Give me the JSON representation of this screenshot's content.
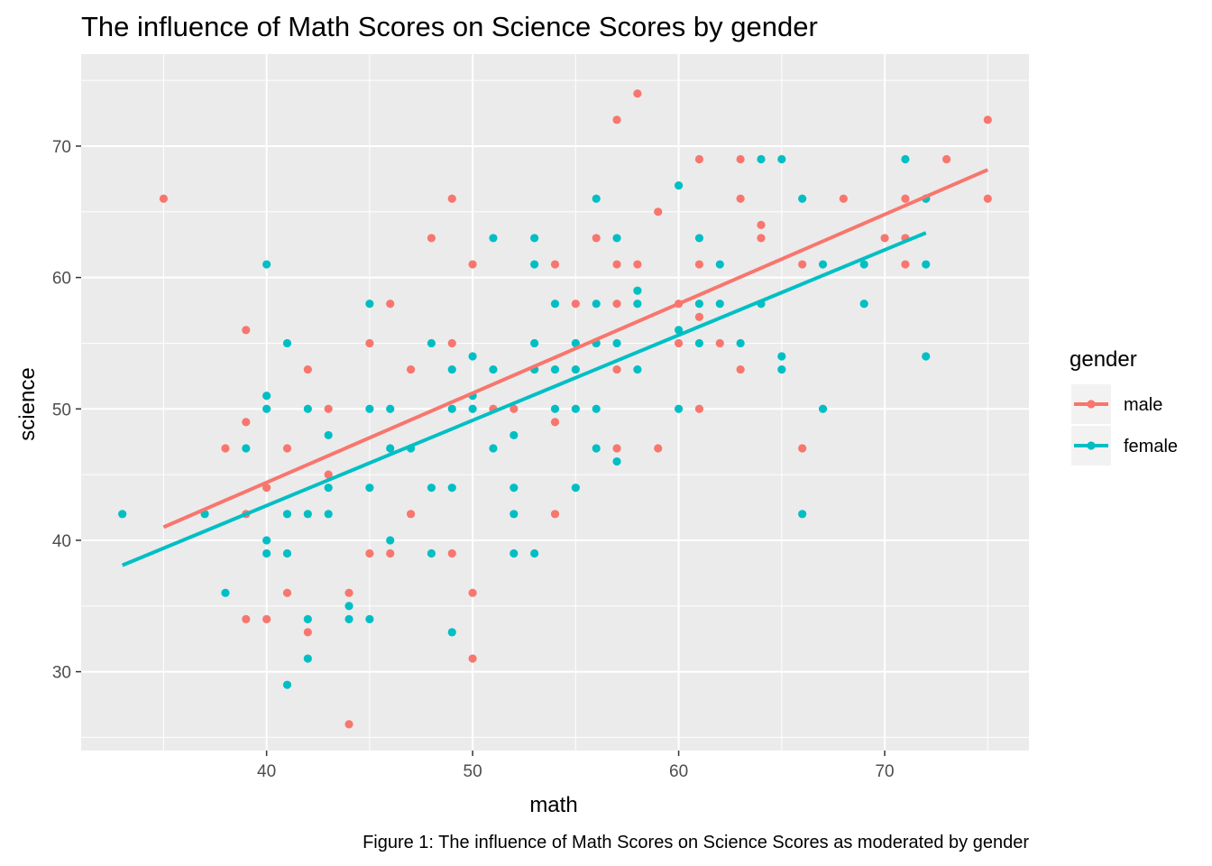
{
  "chart_data": {
    "type": "scatter",
    "title": "The influence of Math Scores on Science Scores by gender",
    "xlabel": "math",
    "ylabel": "science",
    "caption": "Figure 1: The influence of Math Scores on Science Scores as moderated by gender",
    "xlim": [
      31,
      77
    ],
    "ylim": [
      24,
      77
    ],
    "x_ticks": [
      40,
      50,
      60,
      70
    ],
    "y_ticks": [
      30,
      40,
      50,
      60,
      70
    ],
    "x_tick_labels": [
      "40",
      "50",
      "60",
      "70"
    ],
    "y_tick_labels": [
      "30",
      "40",
      "50",
      "60",
      "70"
    ],
    "grid": true,
    "legend": {
      "title": "gender",
      "position": "right"
    },
    "series": [
      {
        "name": "male",
        "color": "#F8766D",
        "points": [
          [
            35,
            66
          ],
          [
            38,
            47
          ],
          [
            39,
            56
          ],
          [
            39,
            49
          ],
          [
            39,
            42
          ],
          [
            39,
            34
          ],
          [
            40,
            44
          ],
          [
            40,
            34
          ],
          [
            41,
            47
          ],
          [
            41,
            36
          ],
          [
            42,
            53
          ],
          [
            42,
            33
          ],
          [
            43,
            50
          ],
          [
            43,
            45
          ],
          [
            44,
            36
          ],
          [
            44,
            26
          ],
          [
            45,
            55
          ],
          [
            45,
            39
          ],
          [
            46,
            58
          ],
          [
            46,
            39
          ],
          [
            47,
            53
          ],
          [
            47,
            42
          ],
          [
            48,
            63
          ],
          [
            49,
            66
          ],
          [
            49,
            55
          ],
          [
            49,
            39
          ],
          [
            50,
            61
          ],
          [
            50,
            36
          ],
          [
            50,
            31
          ],
          [
            51,
            50
          ],
          [
            52,
            50
          ],
          [
            54,
            61
          ],
          [
            54,
            49
          ],
          [
            54,
            42
          ],
          [
            55,
            58
          ],
          [
            56,
            63
          ],
          [
            56,
            55
          ],
          [
            57,
            72
          ],
          [
            57,
            61
          ],
          [
            57,
            58
          ],
          [
            57,
            53
          ],
          [
            57,
            47
          ],
          [
            58,
            74
          ],
          [
            58,
            61
          ],
          [
            59,
            65
          ],
          [
            59,
            47
          ],
          [
            60,
            58
          ],
          [
            60,
            55
          ],
          [
            61,
            69
          ],
          [
            61,
            61
          ],
          [
            61,
            57
          ],
          [
            61,
            50
          ],
          [
            62,
            55
          ],
          [
            63,
            69
          ],
          [
            63,
            66
          ],
          [
            63,
            53
          ],
          [
            64,
            64
          ],
          [
            64,
            63
          ],
          [
            66,
            61
          ],
          [
            66,
            47
          ],
          [
            68,
            66
          ],
          [
            70,
            63
          ],
          [
            71,
            66
          ],
          [
            71,
            63
          ],
          [
            71,
            61
          ],
          [
            72,
            66
          ],
          [
            73,
            69
          ],
          [
            75,
            72
          ],
          [
            75,
            66
          ]
        ],
        "fit": {
          "x": [
            35,
            75
          ],
          "y": [
            41.0,
            68.2
          ]
        }
      },
      {
        "name": "female",
        "color": "#00BFC4",
        "points": [
          [
            33,
            42
          ],
          [
            37,
            42
          ],
          [
            38,
            36
          ],
          [
            39,
            47
          ],
          [
            40,
            61
          ],
          [
            40,
            51
          ],
          [
            40,
            50
          ],
          [
            40,
            40
          ],
          [
            40,
            39
          ],
          [
            41,
            55
          ],
          [
            41,
            42
          ],
          [
            41,
            39
          ],
          [
            41,
            29
          ],
          [
            42,
            50
          ],
          [
            42,
            42
          ],
          [
            42,
            34
          ],
          [
            42,
            31
          ],
          [
            43,
            48
          ],
          [
            43,
            44
          ],
          [
            43,
            42
          ],
          [
            44,
            35
          ],
          [
            44,
            34
          ],
          [
            45,
            58
          ],
          [
            45,
            50
          ],
          [
            45,
            44
          ],
          [
            45,
            34
          ],
          [
            46,
            50
          ],
          [
            46,
            47
          ],
          [
            46,
            40
          ],
          [
            47,
            47
          ],
          [
            48,
            55
          ],
          [
            48,
            44
          ],
          [
            48,
            39
          ],
          [
            49,
            53
          ],
          [
            49,
            50
          ],
          [
            49,
            44
          ],
          [
            49,
            33
          ],
          [
            50,
            54
          ],
          [
            50,
            51
          ],
          [
            50,
            50
          ],
          [
            51,
            63
          ],
          [
            51,
            53
          ],
          [
            51,
            47
          ],
          [
            52,
            48
          ],
          [
            52,
            44
          ],
          [
            52,
            42
          ],
          [
            52,
            39
          ],
          [
            53,
            63
          ],
          [
            53,
            61
          ],
          [
            53,
            55
          ],
          [
            53,
            53
          ],
          [
            53,
            39
          ],
          [
            54,
            58
          ],
          [
            54,
            53
          ],
          [
            54,
            50
          ],
          [
            55,
            55
          ],
          [
            55,
            53
          ],
          [
            55,
            50
          ],
          [
            55,
            44
          ],
          [
            56,
            66
          ],
          [
            56,
            58
          ],
          [
            56,
            55
          ],
          [
            56,
            50
          ],
          [
            56,
            47
          ],
          [
            57,
            63
          ],
          [
            57,
            55
          ],
          [
            57,
            46
          ],
          [
            58,
            59
          ],
          [
            58,
            58
          ],
          [
            58,
            53
          ],
          [
            60,
            67
          ],
          [
            60,
            56
          ],
          [
            60,
            50
          ],
          [
            61,
            63
          ],
          [
            61,
            58
          ],
          [
            61,
            55
          ],
          [
            62,
            61
          ],
          [
            62,
            58
          ],
          [
            63,
            55
          ],
          [
            64,
            69
          ],
          [
            64,
            58
          ],
          [
            65,
            69
          ],
          [
            65,
            54
          ],
          [
            65,
            53
          ],
          [
            66,
            66
          ],
          [
            66,
            42
          ],
          [
            67,
            61
          ],
          [
            67,
            50
          ],
          [
            69,
            61
          ],
          [
            69,
            58
          ],
          [
            71,
            69
          ],
          [
            72,
            66
          ],
          [
            72,
            61
          ],
          [
            72,
            54
          ]
        ],
        "fit": {
          "x": [
            33,
            72
          ],
          "y": [
            38.1,
            63.4
          ]
        }
      }
    ]
  }
}
